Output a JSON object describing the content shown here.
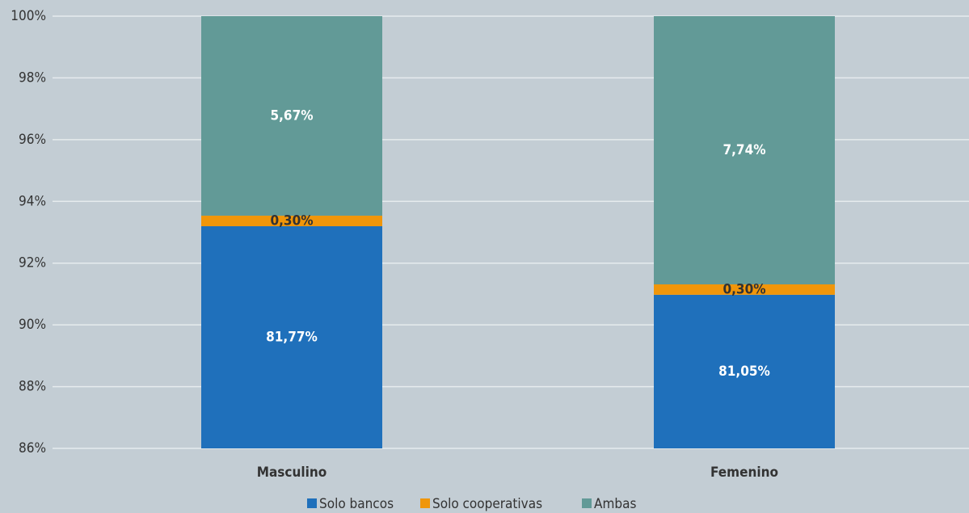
{
  "chart_data": {
    "type": "bar",
    "stacking": "percent",
    "categories": [
      "Masculino",
      "Femenino"
    ],
    "series": [
      {
        "name": "Solo bancos",
        "color": "#1f70bb",
        "values": [
          81.77,
          81.05
        ],
        "value_labels": [
          "81,77%",
          "81,05%"
        ]
      },
      {
        "name": "Solo cooperativas",
        "color": "#f0960a",
        "values": [
          0.3,
          0.3
        ],
        "value_labels": [
          "0,30%",
          "0,30%"
        ]
      },
      {
        "name": "Ambas",
        "color": "#629a97",
        "values": [
          5.67,
          7.74
        ],
        "value_labels": [
          "5,67%",
          "7,74%"
        ]
      }
    ],
    "ylim": [
      86,
      100
    ],
    "yticks": [
      {
        "value": 86,
        "label": "86%"
      },
      {
        "value": 88,
        "label": "88%"
      },
      {
        "value": 90,
        "label": "90%"
      },
      {
        "value": 92,
        "label": "92%"
      },
      {
        "value": 94,
        "label": "94%"
      },
      {
        "value": 96,
        "label": "96%"
      },
      {
        "value": 98,
        "label": "98%"
      },
      {
        "value": 100,
        "label": "100%"
      }
    ],
    "grid": true,
    "legend": "bottom"
  }
}
